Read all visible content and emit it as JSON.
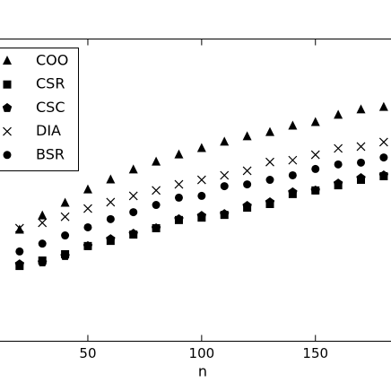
{
  "chart_data": {
    "type": "scatter",
    "x_label": "n",
    "x": [
      20,
      30,
      40,
      50,
      60,
      70,
      80,
      90,
      100,
      110,
      120,
      130,
      140,
      150,
      160,
      170,
      180
    ],
    "series": [
      {
        "name": "COO",
        "color": "#000000",
        "marker": "triangle",
        "values": [
          36.8,
          41.5,
          45.7,
          50.1,
          53.4,
          56.7,
          59.3,
          61.7,
          63.8,
          65.9,
          67.7,
          69.1,
          71.2,
          72.4,
          74.8,
          76.6,
          77.4
        ]
      },
      {
        "name": "CSR",
        "color": "#000000",
        "marker": "square",
        "values": [
          24.9,
          26.7,
          28.8,
          31.5,
          33.2,
          35.3,
          37.4,
          40.1,
          40.9,
          41.8,
          44.2,
          45.4,
          48.7,
          49.9,
          51.6,
          53.4,
          54.6
        ]
      },
      {
        "name": "CSC",
        "color": "#000000",
        "marker": "pentagon",
        "values": [
          25.5,
          26.1,
          28.2,
          31.5,
          33.8,
          35.6,
          37.4,
          40.4,
          41.5,
          42.1,
          44.8,
          46.0,
          49.3,
          49.9,
          52.2,
          54.0,
          54.9
        ]
      },
      {
        "name": "DIA",
        "color": "#000000",
        "marker": "x",
        "values": [
          37.4,
          39.2,
          41.2,
          43.9,
          46.0,
          48.1,
          49.9,
          51.9,
          53.4,
          54.9,
          56.4,
          59.3,
          59.9,
          61.7,
          63.8,
          64.4,
          65.9
        ]
      },
      {
        "name": "BSR",
        "color": "#000000",
        "marker": "circle",
        "values": [
          29.7,
          32.3,
          35.0,
          37.7,
          40.4,
          42.7,
          45.1,
          47.5,
          48.1,
          51.3,
          51.9,
          53.4,
          54.9,
          57.0,
          58.5,
          59.1,
          60.8
        ]
      }
    ],
    "xlim": [
      11.4,
      183.2
    ],
    "xticks": [
      50,
      100,
      150
    ],
    "ylim": [
      0,
      100
    ],
    "legend": "upper left"
  }
}
